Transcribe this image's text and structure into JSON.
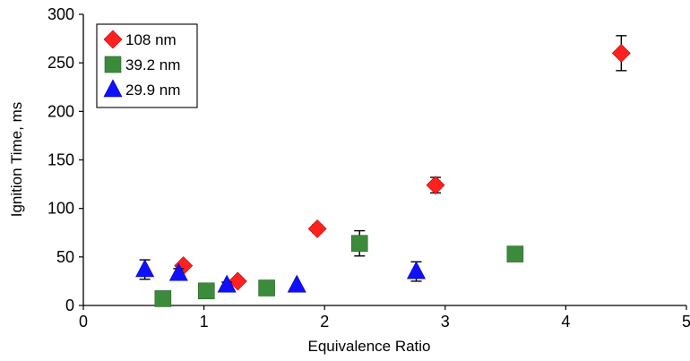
{
  "chart_data": {
    "type": "scatter",
    "title": "",
    "xlabel": "Equivalence Ratio",
    "ylabel": "Ignition Time, ms",
    "xlim": [
      0,
      5
    ],
    "ylim": [
      0,
      300
    ],
    "xticks": [
      "0",
      "1",
      "2",
      "3",
      "4",
      "5"
    ],
    "yticks": [
      "0",
      "50",
      "100",
      "150",
      "200",
      "250",
      "300"
    ],
    "grid": false,
    "legend": "top-left",
    "series": [
      {
        "name": "108 nm",
        "marker": "diamond",
        "color": "#ff2020",
        "points": [
          {
            "x": 0.83,
            "y": 41,
            "err": 0
          },
          {
            "x": 1.28,
            "y": 25,
            "err": 0
          },
          {
            "x": 1.94,
            "y": 79,
            "err": 4
          },
          {
            "x": 2.92,
            "y": 124,
            "err": 8
          },
          {
            "x": 4.46,
            "y": 260,
            "err": 18
          }
        ]
      },
      {
        "name": "39.2 nm",
        "marker": "square",
        "color": "#3c8a3c",
        "points": [
          {
            "x": 0.66,
            "y": 7,
            "err": 0
          },
          {
            "x": 1.02,
            "y": 15,
            "err": 0
          },
          {
            "x": 1.52,
            "y": 18,
            "err": 0
          },
          {
            "x": 2.29,
            "y": 64,
            "err": 13
          },
          {
            "x": 3.58,
            "y": 53,
            "err": 6
          }
        ]
      },
      {
        "name": "29.9 nm",
        "marker": "triangle",
        "color": "#1010ff",
        "points": [
          {
            "x": 0.51,
            "y": 37,
            "err": 10
          },
          {
            "x": 0.79,
            "y": 33,
            "err": 5
          },
          {
            "x": 1.19,
            "y": 21,
            "err": 3
          },
          {
            "x": 1.77,
            "y": 21,
            "err": 0
          },
          {
            "x": 2.76,
            "y": 35,
            "err": 10
          }
        ]
      }
    ]
  }
}
